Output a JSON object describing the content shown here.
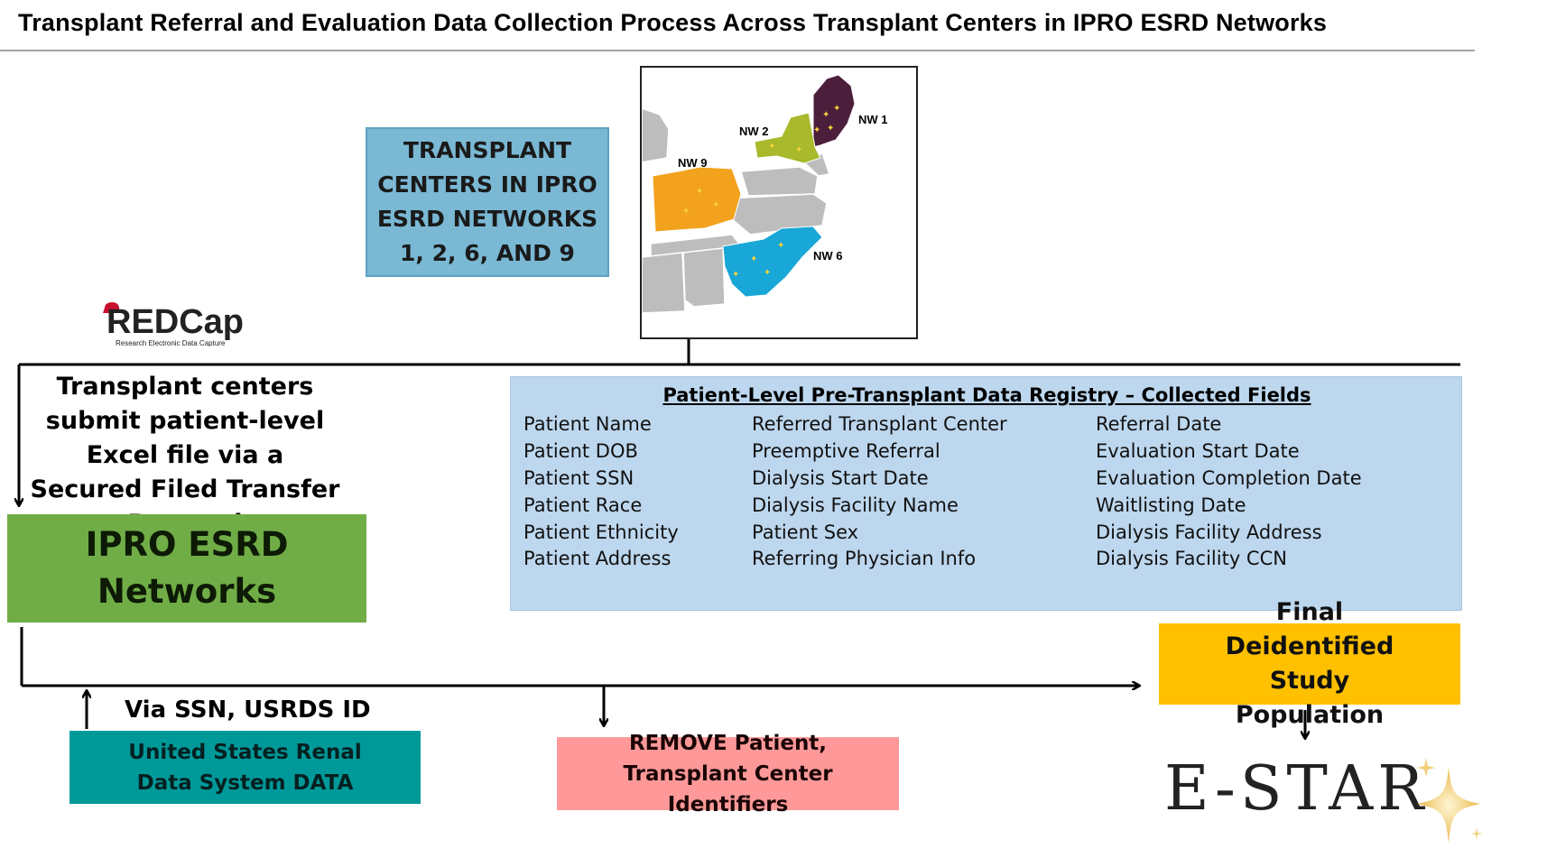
{
  "title": "Transplant Referral and Evaluation Data Collection Process Across Transplant Centers in IPRO ESRD Networks",
  "centers_box": "TRANSPLANT CENTERS IN IPRO ESRD NETWORKS 1, 2, 6, AND 9",
  "map": {
    "labels": {
      "nw1": "NW 1",
      "nw2": "NW 2",
      "nw6": "NW 6",
      "nw9": "NW 9"
    },
    "colors": {
      "nw1": "#4b1f3c",
      "nw2": "#a8b92b",
      "nw6": "#18a7d6",
      "nw9": "#f2a21c",
      "other": "#bdbdbd"
    }
  },
  "redcap": {
    "name": "REDCap",
    "tagline": "Research Electronic Data Capture"
  },
  "submit_text": "Transplant centers submit patient-level Excel file via a Secured Filed Transfer Protocol",
  "ipro_box": "IPRO ESRD Networks",
  "registry": {
    "title": "Patient-Level Pre-Transplant Data Registry – Collected Fields",
    "col1": [
      "Patient Name",
      "Patient DOB",
      "Patient SSN",
      "Patient Race",
      "Patient Ethnicity",
      "Patient Address"
    ],
    "col2": [
      "Referred Transplant Center",
      "Preemptive Referral",
      "Dialysis Start Date",
      "Dialysis Facility Name",
      "Patient Sex",
      "Referring Physician Info"
    ],
    "col3": [
      "Referral Date",
      "Evaluation Start Date",
      "Evaluation Completion Date",
      "Waitlisting Date",
      "Dialysis Facility Address",
      "Dialysis Facility CCN"
    ]
  },
  "via_text": "Via SSN, USRDS ID",
  "usrds_box": "United States Renal Data System DATA",
  "remove_box": "REMOVE Patient, Transplant Center Identifiers",
  "final_box": "Final Deidentified Study Population",
  "estar": "E-STAR"
}
